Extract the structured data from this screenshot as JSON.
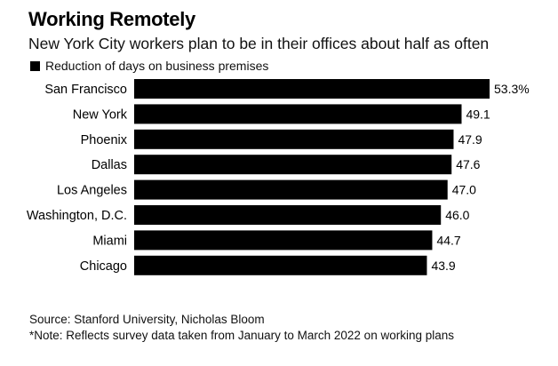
{
  "title": "Working Remotely",
  "subtitle": "New York City workers plan to be in their offices about half as often",
  "source": "Source: Stanford University, Nicholas Bloom",
  "note": "*Note: Reflects survey data taken from January to March 2022 on working plans",
  "chart_data": {
    "type": "bar",
    "orientation": "horizontal",
    "legend": [
      "Reduction of days on business premises"
    ],
    "legend_position": "top-left",
    "categories": [
      "San Francisco",
      "New York",
      "Phoenix",
      "Dallas",
      "Los Angeles",
      "Washington, D.C.",
      "Miami",
      "Chicago"
    ],
    "values": [
      53.3,
      49.1,
      47.9,
      47.6,
      47.0,
      46.0,
      44.7,
      43.9
    ],
    "value_labels": [
      "53.3%",
      "49.1",
      "47.9",
      "47.6",
      "47.0",
      "46.0",
      "44.7",
      "43.9"
    ],
    "bar_color": "#000000",
    "xlim": [
      0,
      53.3
    ],
    "grid": false
  }
}
